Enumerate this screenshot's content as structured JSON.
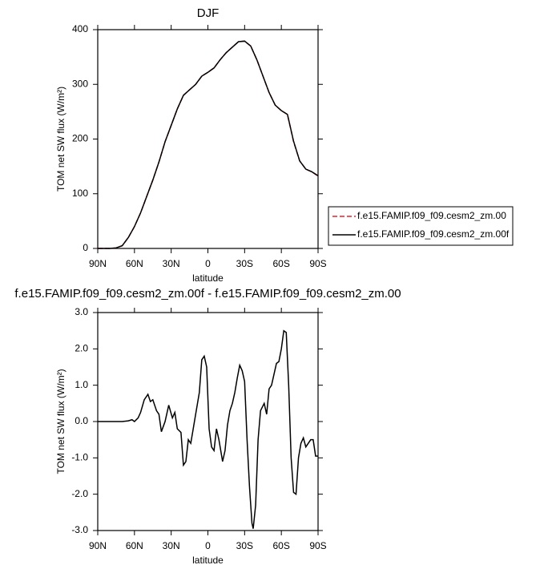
{
  "chart_data": [
    {
      "type": "line",
      "title": "DJF",
      "xlabel": "latitude",
      "ylabel": "TOM net SW flux (W/m²)",
      "x": [
        90,
        85,
        80,
        75,
        70,
        65,
        60,
        55,
        50,
        45,
        40,
        35,
        30,
        25,
        20,
        15,
        10,
        5,
        0,
        -5,
        -10,
        -15,
        -20,
        -25,
        -30,
        -35,
        -40,
        -45,
        -50,
        -55,
        -60,
        -65,
        -70,
        -75,
        -80,
        -85,
        -90
      ],
      "series": [
        {
          "name": "f.e15.FAMIP.f09_f09.cesm2_zm.00",
          "color": "#e8212a",
          "style": "dashed",
          "values": [
            0,
            0,
            0,
            1,
            5,
            20,
            40,
            65,
            95,
            125,
            158,
            195,
            225,
            255,
            280,
            290,
            300,
            315,
            322,
            330,
            345,
            358,
            368,
            378,
            379,
            370,
            345,
            315,
            285,
            262,
            252,
            245,
            195,
            160,
            145,
            140,
            132
          ]
        },
        {
          "name": "f.e15.FAMIP.f09_f09.cesm2_zm.00f",
          "color": "#000000",
          "style": "solid",
          "values": [
            0,
            0,
            0,
            1,
            5,
            20,
            40,
            65,
            95,
            125,
            158,
            195,
            225,
            255,
            280,
            290,
            300,
            315,
            322,
            330,
            345,
            358,
            368,
            378,
            379,
            370,
            345,
            315,
            285,
            262,
            252,
            245,
            196,
            160,
            145,
            140,
            133
          ]
        }
      ],
      "xlim": [
        90,
        -90
      ],
      "xticks": [
        {
          "value": 90,
          "label": "90N"
        },
        {
          "value": 60,
          "label": "60N"
        },
        {
          "value": 30,
          "label": "30N"
        },
        0,
        {
          "value": -30,
          "label": "30S"
        },
        {
          "value": -60,
          "label": "60S"
        },
        {
          "value": -90,
          "label": "90S"
        }
      ],
      "ylim": [
        0,
        400
      ],
      "yticks": [
        0,
        100,
        200,
        300,
        400
      ],
      "legend": "right"
    },
    {
      "type": "line",
      "title": "f.e15.FAMIP.f09_f09.cesm2_zm.00f - f.e15.FAMIP.f09_f09.cesm2_zm.00",
      "xlabel": "latitude",
      "ylabel": "TOM net SW flux (W/m²)",
      "x": [
        90,
        80,
        70,
        65,
        62,
        60,
        57,
        55,
        52,
        49,
        47,
        45,
        42,
        40,
        38,
        35,
        32,
        29,
        27,
        25,
        22,
        20,
        18,
        16,
        14,
        12,
        10,
        7,
        5,
        3,
        1,
        -1,
        -3,
        -5,
        -7,
        -9,
        -12,
        -14,
        -16,
        -18,
        -20,
        -22,
        -24,
        -26,
        -28,
        -30,
        -32,
        -34,
        -36,
        -37,
        -39,
        -41,
        -43,
        -46,
        -48,
        -50,
        -52,
        -54,
        -56,
        -58,
        -60,
        -62,
        -64,
        -66,
        -68,
        -70,
        -72,
        -74,
        -76,
        -78,
        -80,
        -82,
        -84,
        -86,
        -88,
        -90
      ],
      "series": [
        {
          "color": "#000000",
          "style": "solid",
          "values": [
            0,
            0,
            0,
            0.02,
            0.05,
            0,
            0.1,
            0.25,
            0.6,
            0.75,
            0.55,
            0.6,
            0.3,
            0.2,
            -0.28,
            0,
            0.45,
            0.1,
            0.25,
            -0.2,
            -0.3,
            -1.2,
            -1.1,
            -0.5,
            -0.6,
            -0.2,
            0.2,
            0.8,
            1.7,
            1.8,
            1.5,
            -0.2,
            -0.7,
            -0.8,
            -0.2,
            -0.5,
            -1.1,
            -0.8,
            -0.1,
            0.3,
            0.5,
            0.8,
            1.2,
            1.55,
            1.4,
            1.1,
            -0.5,
            -1.8,
            -2.8,
            -2.95,
            -2.3,
            -0.5,
            0.3,
            0.5,
            0.2,
            0.9,
            1.0,
            1.3,
            1.6,
            1.65,
            2.0,
            2.5,
            2.45,
            1.0,
            -1.0,
            -1.95,
            -2.0,
            -1.0,
            -0.6,
            -0.45,
            -0.7,
            -0.6,
            -0.5,
            -0.5,
            -0.95,
            -0.95
          ]
        }
      ],
      "xlim": [
        90,
        -90
      ],
      "xticks": [
        {
          "value": 90,
          "label": "90N"
        },
        {
          "value": 60,
          "label": "60N"
        },
        {
          "value": 30,
          "label": "30N"
        },
        0,
        {
          "value": -30,
          "label": "30S"
        },
        {
          "value": -60,
          "label": "60S"
        },
        {
          "value": -90,
          "label": "90S"
        }
      ],
      "ylim": [
        -3,
        3
      ],
      "yticks": [
        {
          "value": -3,
          "label": "-3.0"
        },
        {
          "value": -2,
          "label": "-2.0"
        },
        {
          "value": -1,
          "label": "-1.0"
        },
        {
          "value": 0,
          "label": "0.0"
        },
        {
          "value": 1,
          "label": "1.0"
        },
        {
          "value": 2,
          "label": "2.0"
        },
        {
          "value": 3,
          "label": "3.0"
        }
      ]
    }
  ]
}
